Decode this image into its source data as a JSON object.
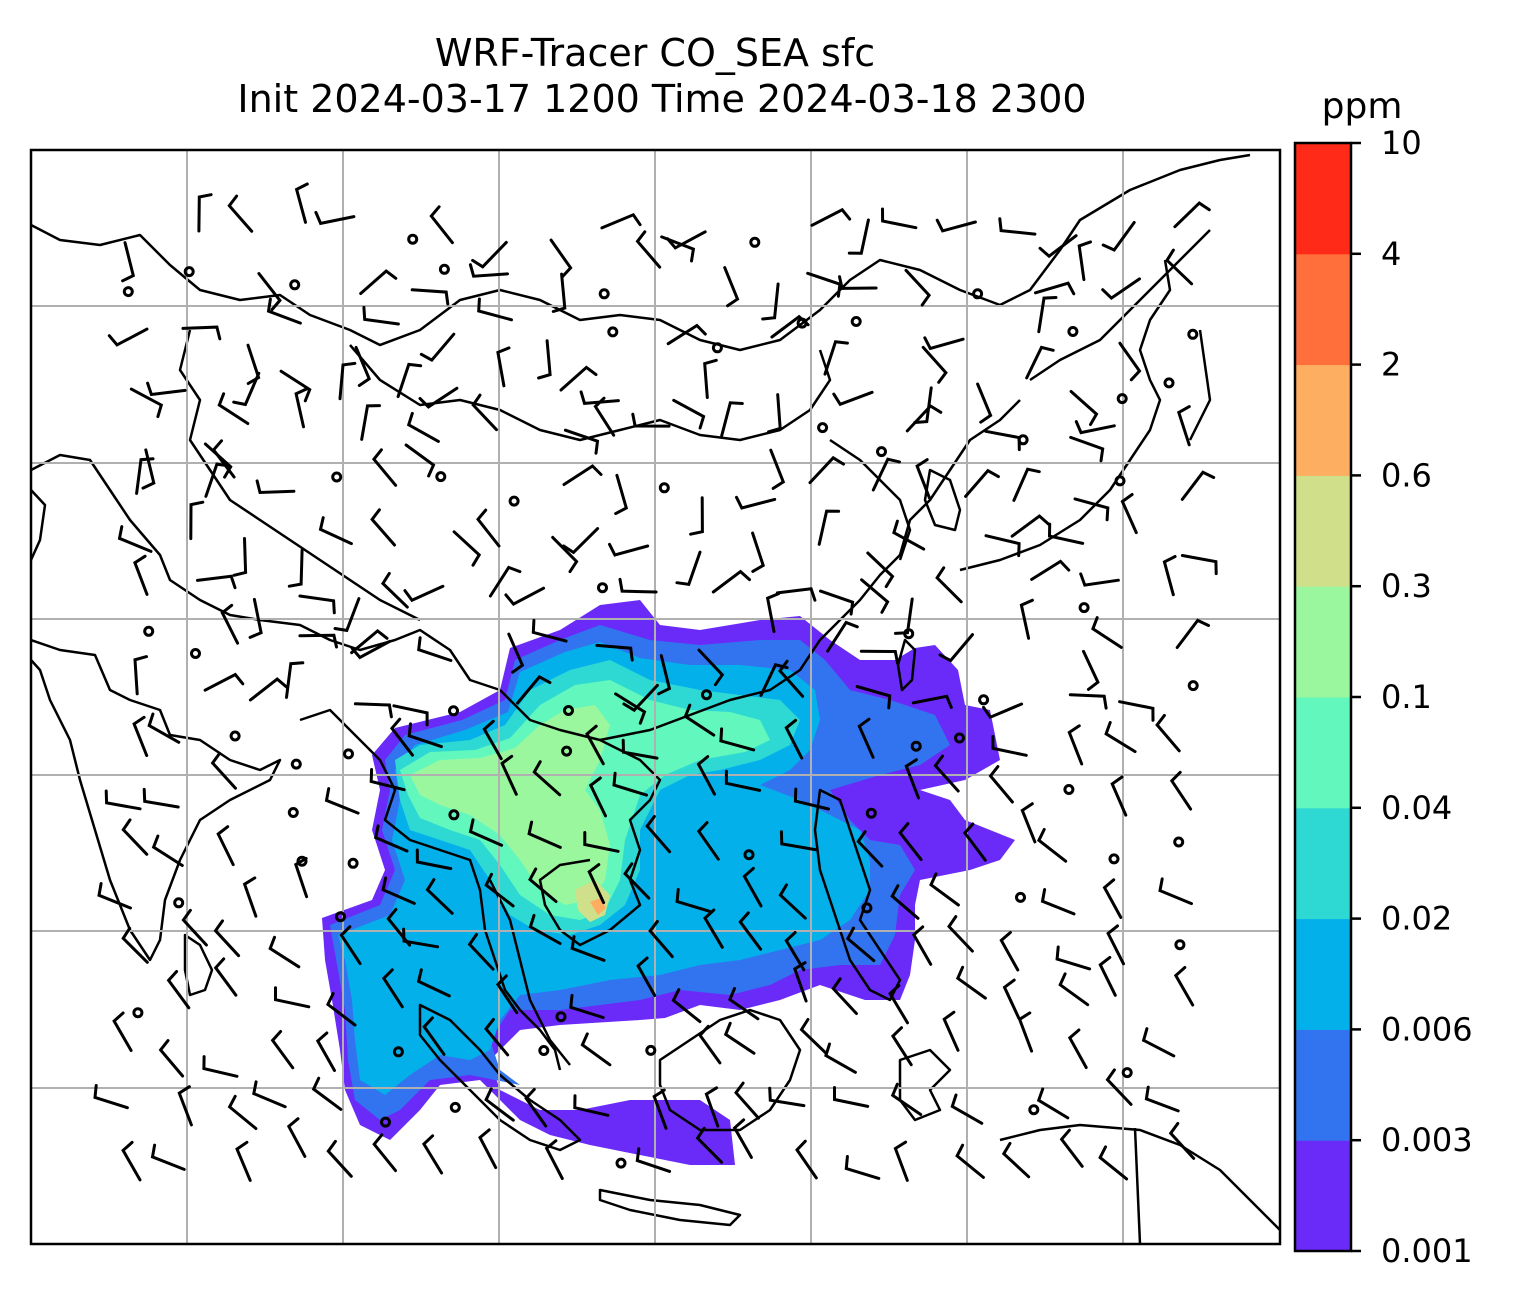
{
  "title": {
    "line1": "WRF-Tracer CO_SEA sfc",
    "line2": "Init 2024-03-17 1200 Time 2024-03-18 2300"
  },
  "colorbar": {
    "unit": "ppm",
    "levels": [
      "0.001",
      "0.003",
      "0.006",
      "0.02",
      "0.04",
      "0.1",
      "0.3",
      "0.6",
      "2",
      "4",
      "10"
    ],
    "colors": [
      "#6a2bf8",
      "#3274f0",
      "#04b0ea",
      "#2ed9d4",
      "#62f7bd",
      "#9bf79e",
      "#d0e08a",
      "#fdae61",
      "#ff6f3c",
      "#ff2a18"
    ]
  },
  "map": {
    "land_outline_color": "#000000",
    "grid_color": "#b0b0b0",
    "background": "#ffffff"
  }
}
